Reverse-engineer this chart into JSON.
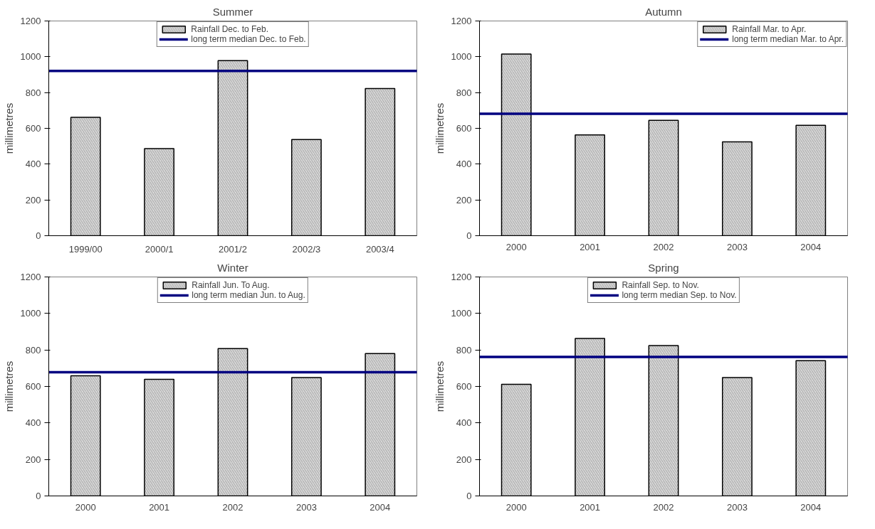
{
  "chart_data": [
    {
      "type": "bar",
      "title": "Summer",
      "ylabel": "millimetres",
      "categories": [
        "1999/00",
        "2000/1",
        "2001/2",
        "2002/3",
        "2003/4"
      ],
      "ylim": [
        0,
        1200
      ],
      "yticks": [
        0,
        200,
        400,
        600,
        800,
        1000,
        1200
      ],
      "legend": "top",
      "series": [
        {
          "name": "Rainfall Dec. to Feb.",
          "color": "#e6e6e6",
          "values": [
            662,
            487,
            978,
            537,
            823
          ]
        }
      ],
      "ref_lines": [
        {
          "axis": "y",
          "value": 921,
          "label": "long term median Dec. to Feb.",
          "color": "#000080"
        }
      ]
    },
    {
      "type": "bar",
      "title": "Autumn",
      "ylabel": "millimetres",
      "categories": [
        "2000",
        "2001",
        "2002",
        "2003",
        "2004"
      ],
      "ylim": [
        0,
        1200
      ],
      "yticks": [
        0,
        200,
        400,
        600,
        800,
        1000,
        1200
      ],
      "legend": "top right",
      "series": [
        {
          "name": "Rainfall Mar. to Apr.",
          "color": "#e6e6e6",
          "values": [
            1015,
            563,
            645,
            525,
            617
          ]
        }
      ],
      "ref_lines": [
        {
          "axis": "y",
          "value": 681,
          "label": "long term median Mar. to Apr.",
          "color": "#000080"
        }
      ]
    },
    {
      "type": "bar",
      "title": "Winter",
      "ylabel": "millimetres",
      "categories": [
        "2000",
        "2001",
        "2002",
        "2003",
        "2004"
      ],
      "ylim": [
        0,
        1200
      ],
      "yticks": [
        0,
        200,
        400,
        600,
        800,
        1000,
        1200
      ],
      "legend": "top",
      "series": [
        {
          "name": "Rainfall Jun. To Aug.",
          "color": "#e6e6e6",
          "values": [
            658,
            639,
            807,
            649,
            780
          ]
        }
      ],
      "ref_lines": [
        {
          "axis": "y",
          "value": 678,
          "label": "long term median Jun. to Aug.",
          "color": "#000080"
        }
      ]
    },
    {
      "type": "bar",
      "title": "Spring",
      "ylabel": "millimetres",
      "categories": [
        "2000",
        "2001",
        "2002",
        "2003",
        "2004"
      ],
      "ylim": [
        0,
        1200
      ],
      "yticks": [
        0,
        200,
        400,
        600,
        800,
        1000,
        1200
      ],
      "legend": "top",
      "series": [
        {
          "name": "Rainfall Sep. to Nov.",
          "color": "#e6e6e6",
          "values": [
            612,
            863,
            824,
            649,
            741
          ]
        }
      ],
      "ref_lines": [
        {
          "axis": "y",
          "value": 762,
          "label": "long term median Sep. to Nov.",
          "color": "#000080"
        }
      ]
    }
  ]
}
